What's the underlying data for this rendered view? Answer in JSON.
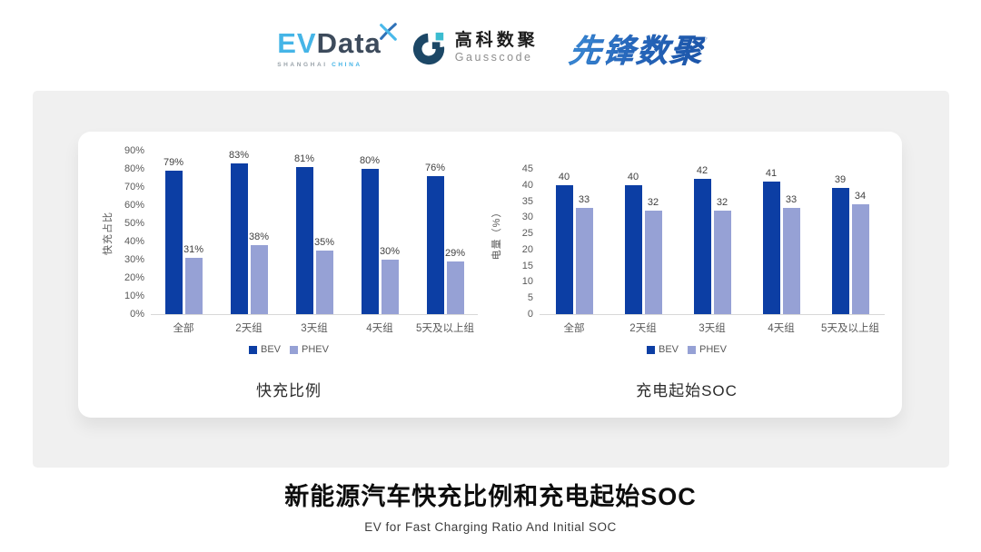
{
  "header": {
    "evdata": {
      "ev": "EV",
      "data": "Data",
      "sub_left": "SHANGHAI",
      "sub_right": "CHINA"
    },
    "gausscode": {
      "cn": "高科数聚",
      "en": "Gausscode"
    },
    "xianfeng": {
      "text": "先锋数聚"
    }
  },
  "chart_data": [
    {
      "type": "bar",
      "title": "快充比例",
      "ylabel": "快充占比",
      "categories": [
        "全部",
        "2天组",
        "3天组",
        "4天组",
        "5天及以上组"
      ],
      "series": [
        {
          "name": "BEV",
          "values": [
            79,
            83,
            81,
            80,
            76
          ],
          "color": "#0c3ea4"
        },
        {
          "name": "PHEV",
          "values": [
            31,
            38,
            35,
            30,
            29
          ],
          "color": "#96a1d5"
        }
      ],
      "ylim": [
        0,
        90
      ],
      "ytick_step": 10,
      "tick_suffix": "%",
      "value_suffix": "%",
      "legend_position": "bottom",
      "grid": false
    },
    {
      "type": "bar",
      "title": "充电起始SOC",
      "ylabel": "电量（%）",
      "categories": [
        "全部",
        "2天组",
        "3天组",
        "4天组",
        "5天及以上组"
      ],
      "series": [
        {
          "name": "BEV",
          "values": [
            40,
            40,
            42,
            41,
            39
          ],
          "color": "#0c3ea4"
        },
        {
          "name": "PHEV",
          "values": [
            33,
            32,
            32,
            33,
            34
          ],
          "color": "#96a1d5"
        }
      ],
      "ylim": [
        0,
        45
      ],
      "ytick_step": 5,
      "tick_suffix": "",
      "value_suffix": "",
      "legend_position": "bottom",
      "grid": false
    }
  ],
  "footer": {
    "title": "新能源汽车快充比例和充电起始SOC",
    "subtitle": "EV for Fast Charging Ratio And Initial SOC"
  },
  "colors": {
    "bev": "#0c3ea4",
    "phev": "#96a1d5",
    "panel_bg": "#f0f0f0",
    "card_bg": "#ffffff",
    "axis_text": "#595959",
    "baseline": "#d8d8d8"
  }
}
